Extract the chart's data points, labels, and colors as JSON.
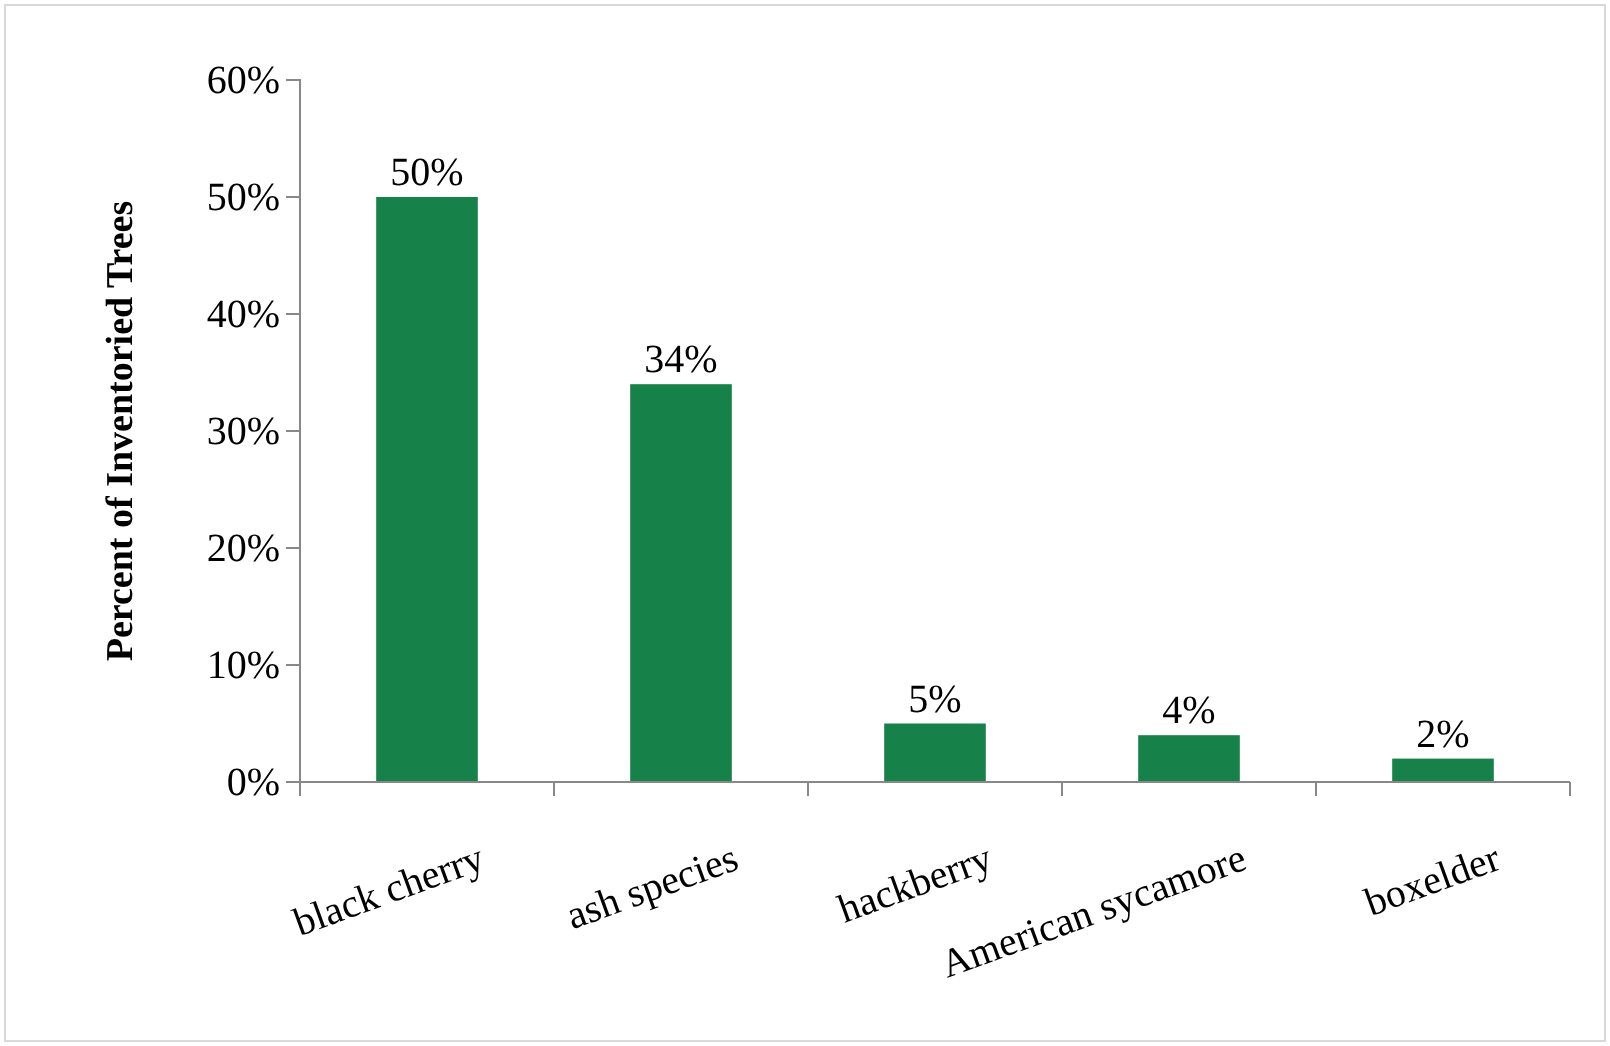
{
  "chart_data": {
    "type": "bar",
    "ylabel": "Percent of Inventoried Trees",
    "categories": [
      "black cherry",
      "ash species",
      "hackberry",
      "American sycamore",
      "boxelder"
    ],
    "values": [
      50,
      34,
      5,
      4,
      2
    ],
    "color": "#168148",
    "ylim": [
      0,
      60
    ],
    "yticks": [
      {
        "value": 0,
        "label": "0%"
      },
      {
        "value": 10,
        "label": "10%"
      },
      {
        "value": 20,
        "label": "20%"
      },
      {
        "value": 30,
        "label": "30%"
      },
      {
        "value": 40,
        "label": "40%"
      },
      {
        "value": 50,
        "label": "50%"
      },
      {
        "value": 60,
        "label": "60%"
      }
    ],
    "value_labels": [
      "50%",
      "34%",
      "5%",
      "4%",
      "2%"
    ],
    "grid": false
  }
}
